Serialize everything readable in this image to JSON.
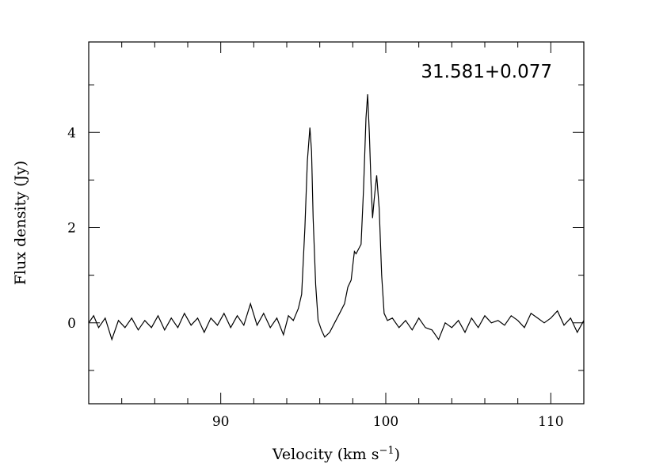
{
  "chart_data": {
    "type": "line",
    "title": "",
    "annotation": "31.581+0.077",
    "xlabel": "Velocity (km s",
    "xlabel_superscript": "−1",
    "xlabel_suffix": ")",
    "ylabel": "Flux density (Jy)",
    "xlim": [
      82,
      112
    ],
    "ylim": [
      -1.7,
      5.9
    ],
    "x_ticks": [
      90,
      100,
      110
    ],
    "y_ticks": [
      0,
      2,
      4
    ],
    "grid": false,
    "legend": "none",
    "line_color": "#000000",
    "series": [
      {
        "x": [
          82.0,
          82.3,
          82.6,
          83.0,
          83.4,
          83.8,
          84.2,
          84.6,
          85.0,
          85.4,
          85.8,
          86.2,
          86.6,
          87.0,
          87.4,
          87.8,
          88.2,
          88.6,
          89.0,
          89.4,
          89.8,
          90.2,
          90.6,
          91.0,
          91.4,
          91.8,
          92.2,
          92.6,
          93.0,
          93.4,
          93.8,
          94.1,
          94.4,
          94.7,
          94.9,
          95.1,
          95.25,
          95.4,
          95.5,
          95.6,
          95.75,
          95.9,
          96.1,
          96.3,
          96.6,
          96.9,
          97.2,
          97.5,
          97.7,
          97.9,
          98.0,
          98.1,
          98.2,
          98.35,
          98.5,
          98.65,
          98.8,
          98.9,
          99.0,
          99.1,
          99.2,
          99.3,
          99.45,
          99.6,
          99.75,
          99.9,
          100.1,
          100.4,
          100.8,
          101.2,
          101.6,
          102.0,
          102.4,
          102.8,
          103.2,
          103.6,
          104.0,
          104.4,
          104.8,
          105.2,
          105.6,
          106.0,
          106.4,
          106.8,
          107.2,
          107.6,
          108.0,
          108.4,
          108.8,
          109.2,
          109.6,
          110.0,
          110.4,
          110.8,
          111.2,
          111.6,
          112.0
        ],
        "y": [
          0.0,
          0.15,
          -0.1,
          0.1,
          -0.35,
          0.05,
          -0.1,
          0.1,
          -0.15,
          0.05,
          -0.1,
          0.15,
          -0.15,
          0.1,
          -0.1,
          0.2,
          -0.05,
          0.1,
          -0.2,
          0.1,
          -0.05,
          0.2,
          -0.1,
          0.15,
          -0.05,
          0.4,
          -0.05,
          0.2,
          -0.1,
          0.1,
          -0.25,
          0.15,
          0.05,
          0.3,
          0.6,
          2.0,
          3.4,
          4.1,
          3.6,
          2.2,
          0.8,
          0.05,
          -0.15,
          -0.3,
          -0.2,
          0.0,
          0.2,
          0.4,
          0.75,
          0.9,
          1.2,
          1.5,
          1.45,
          1.55,
          1.65,
          2.8,
          4.3,
          4.8,
          4.0,
          3.0,
          2.2,
          2.6,
          3.1,
          2.4,
          1.0,
          0.2,
          0.05,
          0.1,
          -0.1,
          0.05,
          -0.15,
          0.1,
          -0.1,
          -0.15,
          -0.35,
          0.0,
          -0.1,
          0.05,
          -0.2,
          0.1,
          -0.1,
          0.15,
          0.0,
          0.05,
          -0.05,
          0.15,
          0.05,
          -0.1,
          0.2,
          0.1,
          0.0,
          0.1,
          0.25,
          -0.05,
          0.1,
          -0.2,
          0.05
        ]
      }
    ]
  }
}
